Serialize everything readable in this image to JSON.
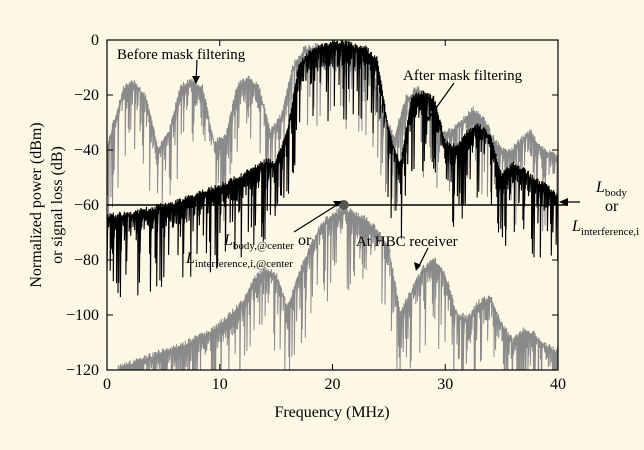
{
  "page": {
    "background": "#fdf8e6"
  },
  "chart_data": {
    "type": "line",
    "title": "",
    "xlabel": "Frequency (MHz)",
    "ylabel": [
      "Normalized power (dBm)",
      "or signal loss (dB)"
    ],
    "xlim": [
      0,
      40
    ],
    "ylim": [
      -120,
      0
    ],
    "xticks": [
      0,
      10,
      20,
      30,
      40
    ],
    "yticks": [
      0,
      -20,
      -40,
      -60,
      -80,
      -100,
      -120
    ],
    "grid": false,
    "colors": {
      "gray": "#8a8a8a",
      "black": "#000000"
    },
    "series": [
      {
        "role": "before_mask",
        "color": "#8a8a8a",
        "x": [
          0,
          0.5,
          1.5,
          2.5,
          3.5,
          4.5,
          5.5,
          6.5,
          7.5,
          8.5,
          9.5,
          10.5,
          11.5,
          12.5,
          13.5,
          14.5,
          15.5,
          16.5,
          17.5,
          18.5,
          19.5,
          20.5,
          21.5,
          22.5,
          23.5,
          24.5,
          25.5,
          26.5,
          27.5,
          28.5,
          29.5,
          30.5,
          31.5,
          32.5,
          33.5,
          34.5,
          35.5,
          36.5,
          37.5,
          38.5,
          39.5,
          40
        ],
        "y": [
          -40,
          -32,
          -18,
          -16,
          -22,
          -40,
          -34,
          -18,
          -15,
          -18,
          -38,
          -36,
          -18,
          -14,
          -18,
          -34,
          -28,
          -10,
          -4,
          -3,
          -3,
          -3,
          -4,
          -6,
          -10,
          -28,
          -36,
          -22,
          -18,
          -22,
          -34,
          -34,
          -30,
          -26,
          -30,
          -38,
          -42,
          -38,
          -34,
          -40,
          -42,
          -44
        ]
      },
      {
        "role": "after_mask",
        "color": "#000000",
        "x": [
          0,
          2,
          4,
          6,
          8,
          10,
          12,
          14,
          15,
          16,
          17,
          18,
          19,
          20,
          21,
          22,
          23,
          24,
          25,
          26,
          27,
          28,
          29,
          30,
          31,
          32,
          33,
          34,
          35,
          36,
          37,
          38,
          39,
          40
        ],
        "y": [
          -65,
          -64,
          -62,
          -60,
          -57,
          -54,
          -50,
          -45,
          -45,
          -34,
          -10,
          -5,
          -3,
          -2,
          -2,
          -3,
          -4,
          -8,
          -34,
          -46,
          -22,
          -20,
          -22,
          -38,
          -40,
          -34,
          -32,
          -36,
          -50,
          -46,
          -48,
          -52,
          -54,
          -58
        ]
      },
      {
        "role": "hbc_receiver",
        "color": "#8a8a8a",
        "x": [
          1,
          3,
          5,
          7,
          9,
          10,
          11,
          12,
          13,
          14,
          15,
          16,
          17,
          18,
          19,
          20,
          21,
          22,
          23,
          24,
          25,
          26,
          27,
          28,
          29,
          30,
          31,
          32,
          33,
          34,
          35,
          36,
          37,
          38,
          39,
          40
        ],
        "y": [
          -120,
          -117,
          -114,
          -111,
          -107,
          -104,
          -100,
          -96,
          -88,
          -84,
          -86,
          -98,
          -86,
          -76,
          -68,
          -64,
          -62,
          -64,
          -66,
          -70,
          -76,
          -100,
          -92,
          -84,
          -80,
          -86,
          -100,
          -102,
          -96,
          -94,
          -104,
          -110,
          -106,
          -108,
          -112,
          -114
        ]
      }
    ],
    "reference_line": {
      "y": -60,
      "color": "#000000"
    },
    "marker_point": {
      "x": 21,
      "y": -60
    },
    "annotations": [
      {
        "id": "before",
        "text": "Before mask filtering"
      },
      {
        "id": "after",
        "text": "After mask filtering"
      },
      {
        "id": "hbc",
        "text": "At HBC receiver"
      },
      {
        "id": "lbody_main",
        "text": "L",
        "sub": "body"
      },
      {
        "id": "or_right",
        "text": "or"
      },
      {
        "id": "linterf_main",
        "text": "L",
        "sub": "interference,i"
      },
      {
        "id": "lcenter_main",
        "text": "L",
        "sub": "body,@center",
        "suffix": " or"
      },
      {
        "id": "lcenter2_main",
        "text": "L",
        "sub": "interference,i,@center"
      }
    ]
  }
}
